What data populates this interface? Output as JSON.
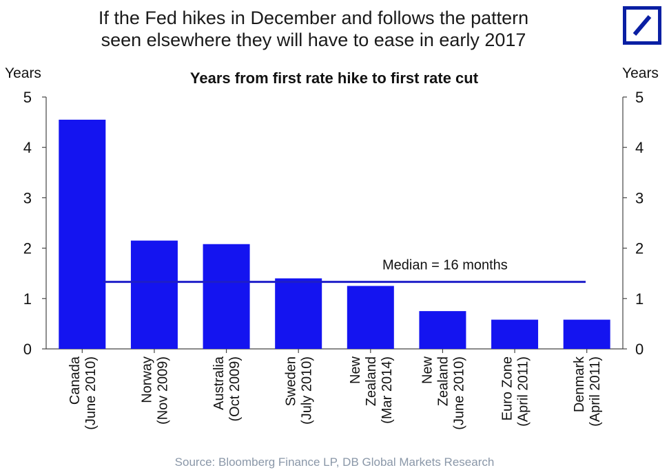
{
  "headline": {
    "line1": "If the Fed hikes in December and follows the pattern",
    "line2": "seen elsewhere they will have to ease in early 2017"
  },
  "source": "Source: Bloomberg Finance LP, DB Global Markets Research",
  "colors": {
    "bar": "#1414f0",
    "median_line": "#1e1ec8",
    "logo": "#0a1fa3",
    "source_text": "#8a97a8"
  },
  "chart_data": {
    "type": "bar",
    "title": "Years from first rate hike to first rate cut",
    "ylabel_left": "Years",
    "ylabel_right": "Years",
    "ylim": [
      0,
      5
    ],
    "yticks": [
      "0",
      "1",
      "2",
      "3",
      "4",
      "5"
    ],
    "grid": false,
    "categories": [
      [
        "Canada",
        "(June 2010)"
      ],
      [
        "Norway",
        "(Nov 2009)"
      ],
      [
        "Australia",
        "(Oct 2009)"
      ],
      [
        "Sweden",
        "(July 2010)"
      ],
      [
        "New",
        "Zealand",
        "(Mar 2014)"
      ],
      [
        "New",
        "Zealand",
        "(June 2010)"
      ],
      [
        "Euro Zone",
        "(April 2011)"
      ],
      [
        "Denmark",
        "(April 2011)"
      ]
    ],
    "values": [
      4.55,
      2.15,
      2.08,
      1.4,
      1.25,
      0.75,
      0.58,
      0.58
    ],
    "median": {
      "value": 1.33,
      "label": "Median = 16 months"
    }
  }
}
